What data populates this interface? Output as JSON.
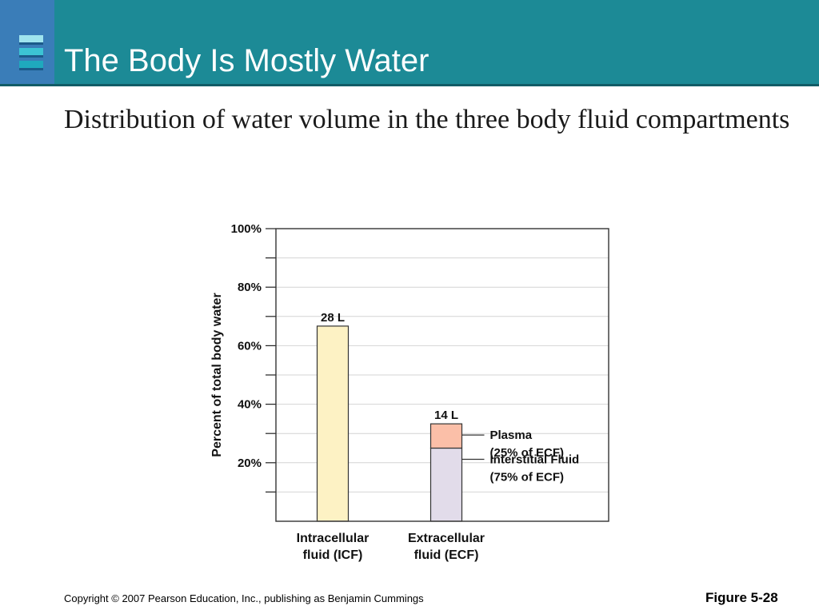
{
  "slide": {
    "title": "The Body Is Mostly Water",
    "subtitle": "Distribution of water volume in the three body fluid compartments",
    "copyright": "Copyright © 2007 Pearson Education, Inc., publishing as Benjamin Cummings",
    "figure_label": "Figure 5-28"
  },
  "colors": {
    "title_bar": "#1c8a96",
    "logo_block": "#3a7db8",
    "icf": "#fdf2c4",
    "plasma": "#fbbfa8",
    "interstitial": "#e2dcea"
  },
  "chart_data": {
    "type": "bar",
    "ylabel": "Percent of total body water",
    "ylim": [
      0,
      100
    ],
    "y_ticks": [
      {
        "value": 20,
        "label": "20%"
      },
      {
        "value": 40,
        "label": "40%"
      },
      {
        "value": 60,
        "label": "60%"
      },
      {
        "value": 80,
        "label": "80%"
      },
      {
        "value": 100,
        "label": "100%"
      }
    ],
    "grid": true,
    "categories": [
      {
        "line1": "Intracellular",
        "line2": "fluid (ICF)"
      },
      {
        "line1": "Extracellular",
        "line2": "fluid (ECF)"
      }
    ],
    "bars": [
      {
        "category_index": 0,
        "value_label": "28 L",
        "segments": [
          {
            "value": 66.7,
            "color": "#fdf2c4"
          }
        ]
      },
      {
        "category_index": 1,
        "value_label": "14 L",
        "segments": [
          {
            "value": 25,
            "color": "#e2dcea",
            "annotation": {
              "line1": "Interstitial Fluid",
              "line2": "(75% of ECF)"
            }
          },
          {
            "value": 8.3,
            "color": "#fbbfa8",
            "annotation": {
              "line1": "Plasma",
              "line2": "(25% of ECF)"
            }
          }
        ]
      }
    ]
  }
}
